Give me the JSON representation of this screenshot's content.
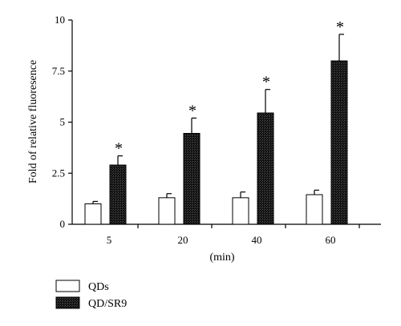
{
  "chart_data": {
    "type": "bar",
    "categories": [
      "5",
      "20",
      "40",
      "60"
    ],
    "series": [
      {
        "name": "QDs",
        "values": [
          1.0,
          1.3,
          1.3,
          1.45
        ],
        "errors": [
          0.12,
          0.2,
          0.28,
          0.22
        ],
        "color": "#ffffff",
        "significant": [
          false,
          false,
          false,
          false
        ]
      },
      {
        "name": "QD/SR9",
        "values": [
          2.9,
          4.45,
          5.45,
          8.0
        ],
        "errors": [
          0.45,
          0.75,
          1.15,
          1.3
        ],
        "color": "#111111",
        "significant": [
          true,
          true,
          true,
          true
        ]
      }
    ],
    "title": "",
    "xlabel": "(min)",
    "ylabel": "Fold of relative fluoresence",
    "ylim": [
      0,
      10
    ],
    "yticks": [
      0,
      2.5,
      5,
      7.5,
      10
    ],
    "ytick_labels": [
      "0",
      "2.5",
      "5",
      "7.5",
      "10"
    ],
    "significance_marker": "*",
    "legend_position": "bottom-left",
    "grid": false
  }
}
